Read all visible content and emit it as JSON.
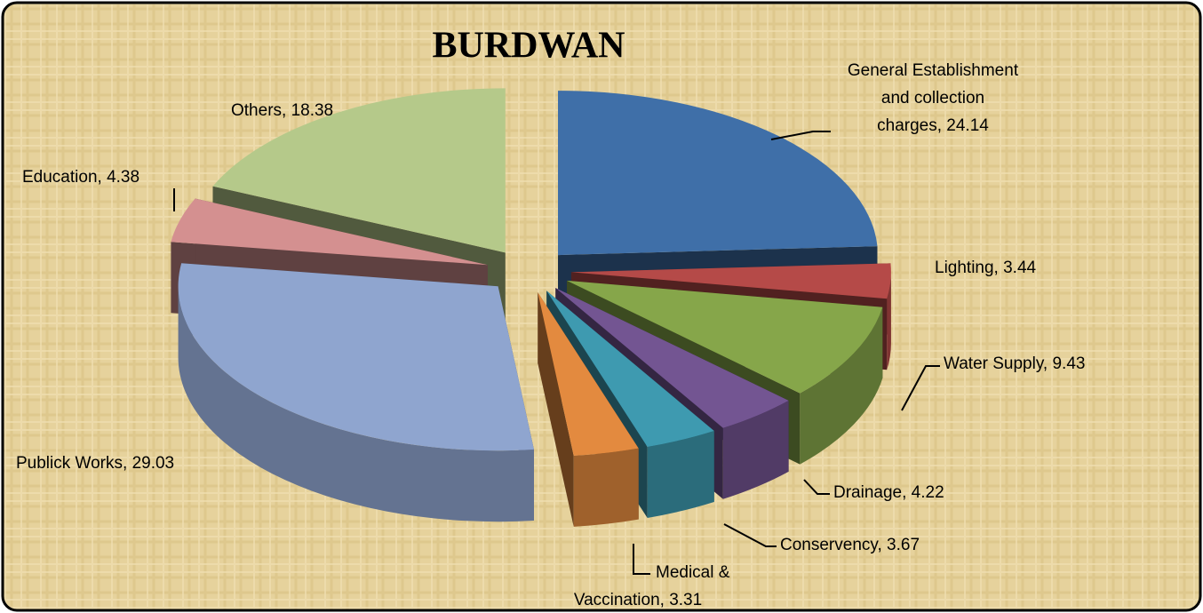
{
  "chart_data": {
    "type": "pie",
    "title": "BURDWAN",
    "values": [
      24.14,
      3.44,
      9.43,
      4.22,
      3.67,
      3.31,
      29.03,
      4.38,
      18.38
    ],
    "value_labels": [
      [
        "General Establishment",
        "and collection",
        "charges, 24.14"
      ],
      [
        "Lighting, 3.44"
      ],
      [
        "Water Supply, 9.43"
      ],
      [
        "Drainage, 4.22"
      ],
      [
        "Conservency, 3.67"
      ],
      [
        "Medical &",
        "Vaccination, 3.31"
      ],
      [
        "Publick Works, 29.03"
      ],
      [
        "Education, 4.38"
      ],
      [
        "Others, 18.38"
      ]
    ],
    "colors": [
      "#3f6fa8",
      "#b54a48",
      "#86a64a",
      "#735592",
      "#3e9ab0",
      "#e38a3f",
      "#8fa5cf",
      "#d49090",
      "#b5c98a"
    ]
  }
}
